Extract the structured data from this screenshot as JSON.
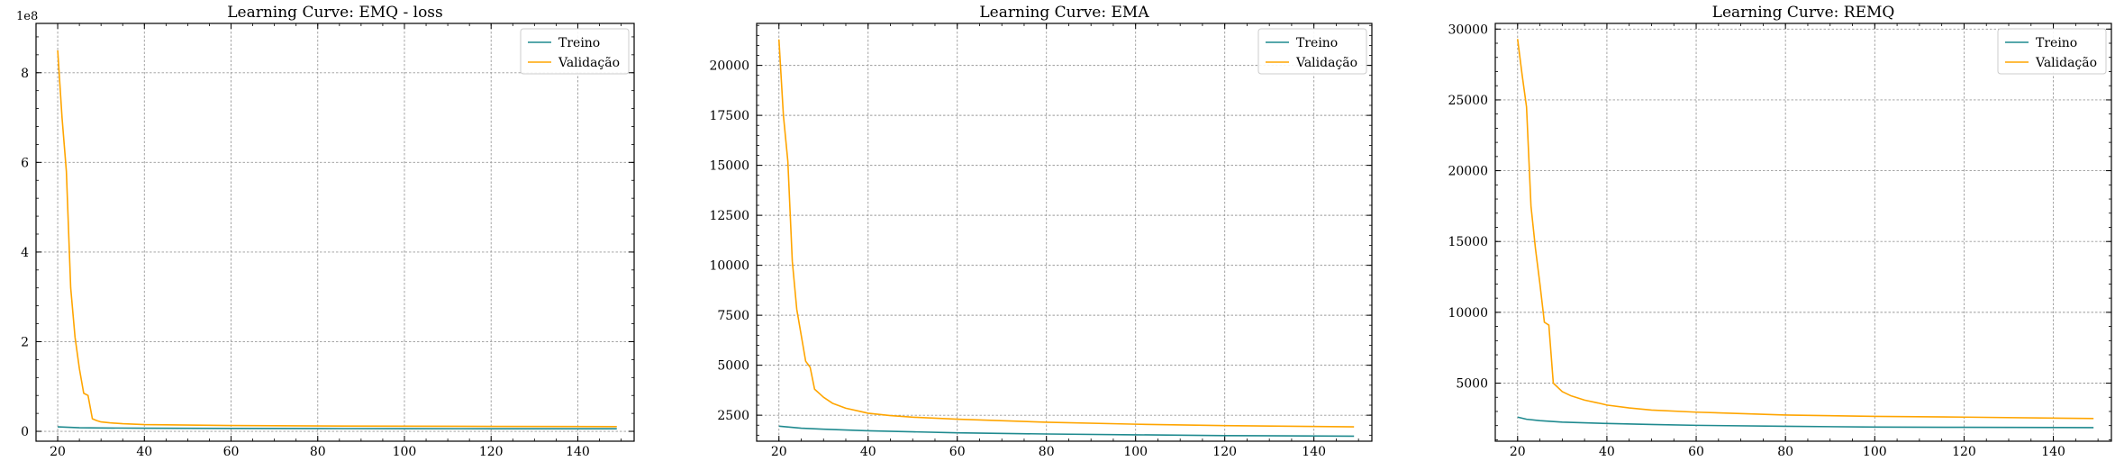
{
  "colors": {
    "treino": "#1f8a8f",
    "validacao": "#ffa500",
    "grid": "#9a9a9a",
    "axes": "#000000"
  },
  "chart_data": [
    {
      "type": "line",
      "title": "Learning Curve: EMQ - loss",
      "xlabel": "",
      "ylabel": "",
      "xlim": [
        15,
        153
      ],
      "ylim": [
        -22000000,
        910000000
      ],
      "y_scale_display": 100000000,
      "y_offset_label": "1e8",
      "xticks": [
        20,
        40,
        60,
        80,
        100,
        120,
        140
      ],
      "yticks": [
        0,
        200000000,
        400000000,
        600000000,
        800000000
      ],
      "ytick_labels": [
        "0",
        "2",
        "4",
        "6",
        "8"
      ],
      "grid": true,
      "legend_position": "top-right",
      "series": [
        {
          "name": "Treino",
          "color_key": "treino",
          "x": [
            20,
            25,
            30,
            40,
            60,
            80,
            100,
            120,
            149
          ],
          "y": [
            10000000,
            8000000,
            7500000,
            7000000,
            6500000,
            6200000,
            6000000,
            5800000,
            5700000
          ]
        },
        {
          "name": "Validação",
          "color_key": "validacao",
          "x": [
            20,
            21,
            22,
            23,
            24,
            25,
            26,
            27,
            28,
            29,
            30,
            32,
            35,
            40,
            45,
            50,
            60,
            80,
            100,
            120,
            149
          ],
          "y": [
            850000000,
            700000000,
            580000000,
            320000000,
            210000000,
            140000000,
            85000000,
            80000000,
            28000000,
            24000000,
            21000000,
            19000000,
            17000000,
            15000000,
            14500000,
            14000000,
            13000000,
            12000000,
            11500000,
            11000000,
            10500000
          ]
        }
      ]
    },
    {
      "type": "line",
      "title": "Learning Curve: EMA",
      "xlabel": "",
      "ylabel": "",
      "xlim": [
        15,
        153
      ],
      "ylim": [
        1200,
        22100
      ],
      "xticks": [
        20,
        40,
        60,
        80,
        100,
        120,
        140
      ],
      "yticks": [
        2500,
        5000,
        7500,
        10000,
        12500,
        15000,
        17500,
        20000
      ],
      "grid": true,
      "legend_position": "top-right",
      "series": [
        {
          "name": "Treino",
          "color_key": "treino",
          "x": [
            20,
            25,
            30,
            40,
            50,
            60,
            80,
            100,
            120,
            149
          ],
          "y": [
            1950,
            1850,
            1800,
            1720,
            1670,
            1620,
            1560,
            1520,
            1480,
            1450
          ]
        },
        {
          "name": "Validação",
          "color_key": "validacao",
          "x": [
            20,
            21,
            22,
            23,
            24,
            25,
            26,
            27,
            28,
            30,
            32,
            35,
            38,
            40,
            45,
            50,
            60,
            80,
            100,
            120,
            149
          ],
          "y": [
            21300,
            17500,
            15200,
            10200,
            7800,
            6500,
            5200,
            4900,
            3800,
            3400,
            3100,
            2850,
            2700,
            2600,
            2480,
            2400,
            2300,
            2150,
            2050,
            1980,
            1920
          ]
        }
      ]
    },
    {
      "type": "line",
      "title": "Learning Curve: REMQ",
      "xlabel": "",
      "ylabel": "",
      "xlim": [
        15,
        153
      ],
      "ylim": [
        900,
        30400
      ],
      "xticks": [
        20,
        40,
        60,
        80,
        100,
        120,
        140
      ],
      "yticks": [
        5000,
        10000,
        15000,
        20000,
        25000,
        30000
      ],
      "grid": true,
      "legend_position": "top-right",
      "series": [
        {
          "name": "Treino",
          "color_key": "treino",
          "x": [
            20,
            22,
            25,
            30,
            40,
            50,
            60,
            80,
            100,
            120,
            149
          ],
          "y": [
            2600,
            2450,
            2350,
            2250,
            2150,
            2080,
            2020,
            1950,
            1900,
            1880,
            1860
          ]
        },
        {
          "name": "Validação",
          "color_key": "validacao",
          "x": [
            20,
            21,
            22,
            23,
            24,
            25,
            26,
            27,
            28,
            30,
            32,
            35,
            38,
            40,
            45,
            50,
            60,
            80,
            100,
            120,
            149
          ],
          "y": [
            29300,
            26800,
            24500,
            17500,
            14500,
            12000,
            9300,
            9100,
            5000,
            4400,
            4100,
            3800,
            3600,
            3450,
            3250,
            3100,
            2950,
            2750,
            2650,
            2600,
            2500
          ]
        }
      ]
    }
  ]
}
